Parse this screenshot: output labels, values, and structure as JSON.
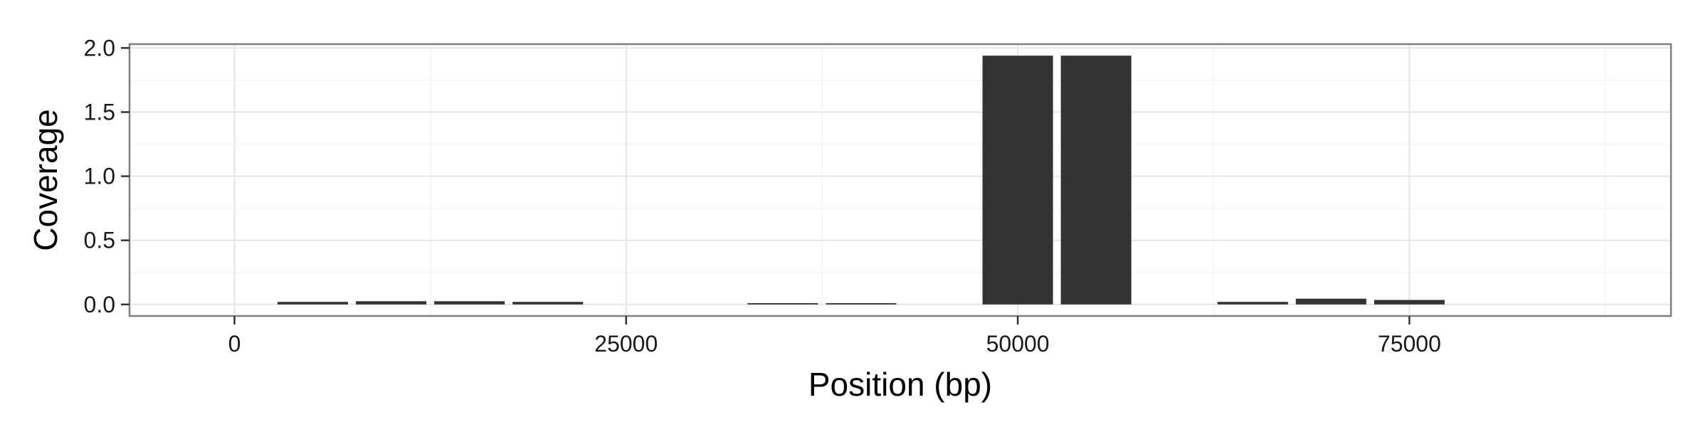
{
  "chart_data": {
    "type": "bar",
    "xlabel": "Position (bp)",
    "ylabel": "Coverage",
    "xlim": [
      -6700,
      91700
    ],
    "ylim": [
      -0.09,
      2.03
    ],
    "x_ticks": [
      0,
      25000,
      50000,
      75000
    ],
    "x_tick_labels": [
      "0",
      "25000",
      "50000",
      "75000"
    ],
    "y_ticks": [
      0.0,
      0.5,
      1.0,
      1.5,
      2.0
    ],
    "y_tick_labels": [
      "0.0",
      "0.5",
      "1.0",
      "1.5",
      "2.0"
    ],
    "grid": true,
    "bar_color": "#333333",
    "bin_width": 5000,
    "x": [
      5000,
      10000,
      15000,
      20000,
      25000,
      30000,
      35000,
      40000,
      45000,
      50000,
      55000,
      60000,
      65000,
      70000,
      75000
    ],
    "values": [
      0.02,
      0.025,
      0.025,
      0.02,
      0.0,
      0.0,
      0.01,
      0.01,
      0.0,
      1.94,
      1.94,
      0.0,
      0.02,
      0.045,
      0.035
    ]
  }
}
